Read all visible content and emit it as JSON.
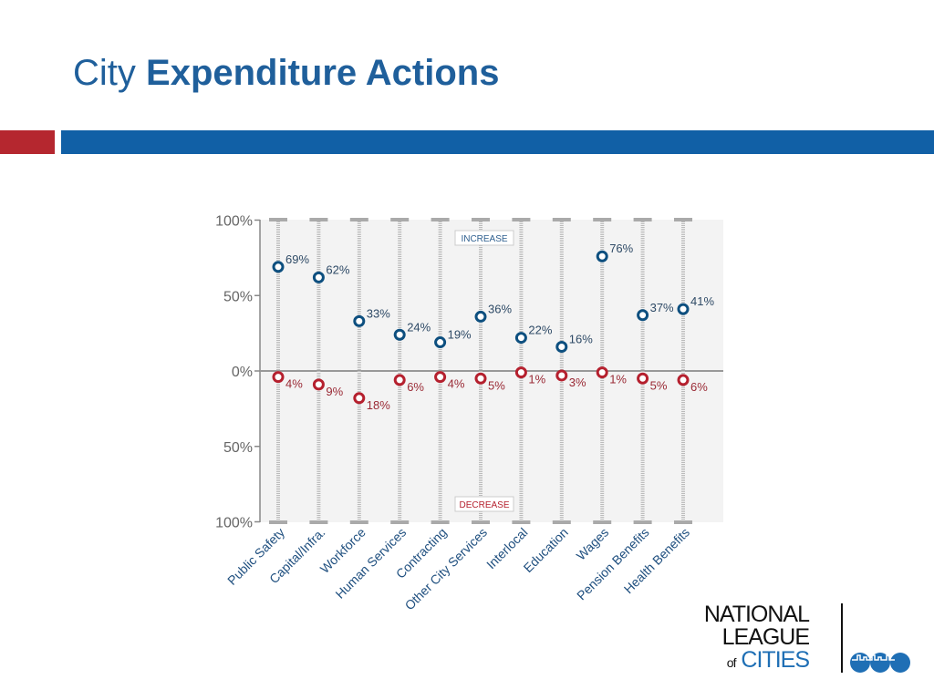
{
  "slide": {
    "title_prefix": "City",
    "title_bold": "Expenditure Actions"
  },
  "logo": {
    "line1": "NATIONAL",
    "line2": "LEAGUE",
    "line3a": "of",
    "line3b": "CITIES"
  },
  "colors": {
    "increase": "#0d4f7f",
    "decrease": "#b5202e",
    "brand_blue": "#1160a6",
    "brand_red": "#b5272f"
  },
  "chart_data": {
    "type": "scatter",
    "categories": [
      "Public Safety",
      "Capital/Infra.",
      "Workforce",
      "Human Services",
      "Contracting",
      "Other City Services",
      "Interlocal",
      "Education",
      "Wages",
      "Pension Benefits",
      "Health Benefits"
    ],
    "series": [
      {
        "name": "INCREASE",
        "values": [
          69,
          62,
          33,
          24,
          19,
          36,
          22,
          16,
          76,
          37,
          41
        ]
      },
      {
        "name": "DECREASE",
        "values": [
          4,
          9,
          18,
          6,
          4,
          5,
          1,
          3,
          1,
          5,
          6
        ]
      }
    ],
    "yticks": [
      "100%",
      "50%",
      "0%",
      "50%",
      "100%"
    ],
    "ylim": [
      -100,
      100
    ],
    "grid": false
  }
}
